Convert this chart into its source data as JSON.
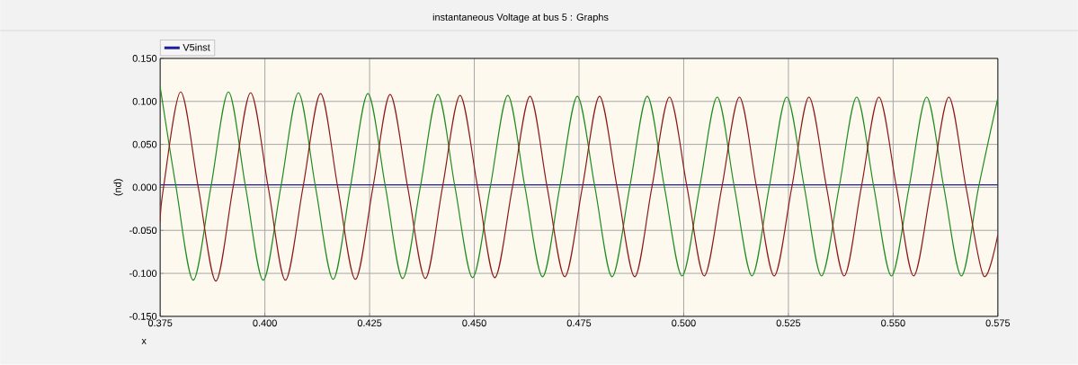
{
  "chart_data": {
    "type": "line",
    "title": "instantaneous Voltage at bus 5 : Graphs",
    "xlabel": "x",
    "ylabel": "(pu)",
    "xlim": [
      0.375,
      0.575
    ],
    "xticks": [
      {
        "value": 0.375,
        "label": "0.375"
      },
      {
        "value": 0.4,
        "label": "0.400"
      },
      {
        "value": 0.425,
        "label": "0.425"
      },
      {
        "value": 0.45,
        "label": "0.450"
      },
      {
        "value": 0.475,
        "label": "0.475"
      },
      {
        "value": 0.5,
        "label": "0.500"
      },
      {
        "value": 0.525,
        "label": "0.525"
      },
      {
        "value": 0.55,
        "label": "0.550"
      },
      {
        "value": 0.575,
        "label": "0.575"
      }
    ],
    "ylim": [
      -0.15,
      0.15
    ],
    "yticks": [
      {
        "value": -0.15,
        "label": "-0.150"
      },
      {
        "value": -0.1,
        "label": "-0.100"
      },
      {
        "value": -0.05,
        "label": "-0.050"
      },
      {
        "value": 0,
        "label": "0.000"
      },
      {
        "value": 0.05,
        "label": "0.050"
      },
      {
        "value": 0.1,
        "label": "0.100"
      },
      {
        "value": 0.15,
        "label": "0.150"
      }
    ],
    "grid": true,
    "legend": "top left",
    "series": [
      {
        "name": "V5inst",
        "color": "#1c1c9c",
        "x": [
          0.375,
          0.575
        ],
        "values": [
          0.003,
          0.003
        ]
      },
      {
        "color": "#1e8c1e",
        "x": [
          0.375,
          0.3788,
          0.3829,
          0.3871,
          0.3913,
          0.3954,
          0.3996,
          0.4038,
          0.408,
          0.4121,
          0.4163,
          0.4204,
          0.4246,
          0.4288,
          0.4329,
          0.4371,
          0.4413,
          0.4454,
          0.4496,
          0.4538,
          0.458,
          0.4621,
          0.4663,
          0.4704,
          0.4746,
          0.4788,
          0.4829,
          0.4871,
          0.4913,
          0.4954,
          0.4996,
          0.5038,
          0.508,
          0.5121,
          0.5163,
          0.5204,
          0.5246,
          0.5288,
          0.5329,
          0.5371,
          0.5413,
          0.5454,
          0.5496,
          0.5538,
          0.558,
          0.5621,
          0.5663,
          0.5704,
          0.575
        ],
        "values": [
          0.117,
          0,
          -0.108,
          0,
          0.111,
          0,
          -0.108,
          0,
          0.11,
          0,
          -0.107,
          0,
          0.109,
          0,
          -0.106,
          0,
          0.108,
          0,
          -0.105,
          0,
          0.107,
          0,
          -0.104,
          0,
          0.106,
          0,
          -0.104,
          0,
          0.106,
          0,
          -0.103,
          0,
          0.105,
          0,
          -0.103,
          0,
          0.105,
          0,
          -0.103,
          0,
          0.105,
          0,
          -0.103,
          0,
          0.105,
          0,
          -0.103,
          0,
          0.104
        ]
      },
      {
        "color": "#8c1a1a",
        "x": [
          0.375,
          0.3758,
          0.3799,
          0.3841,
          0.3883,
          0.3924,
          0.3966,
          0.4008,
          0.4049,
          0.4091,
          0.4133,
          0.4174,
          0.4216,
          0.4258,
          0.4299,
          0.4341,
          0.4383,
          0.4424,
          0.4466,
          0.4508,
          0.4549,
          0.4591,
          0.4633,
          0.4674,
          0.4716,
          0.4758,
          0.4799,
          0.4841,
          0.4883,
          0.4924,
          0.4966,
          0.5008,
          0.5049,
          0.5091,
          0.5133,
          0.5174,
          0.5216,
          0.5258,
          0.5299,
          0.5341,
          0.5383,
          0.5424,
          0.5466,
          0.5508,
          0.5549,
          0.5591,
          0.5633,
          0.5674,
          0.5716,
          0.575
        ],
        "values": [
          -0.04,
          0,
          0.111,
          0,
          -0.109,
          0,
          0.11,
          0,
          -0.108,
          0,
          0.109,
          0,
          -0.107,
          0,
          0.108,
          0,
          -0.106,
          0,
          0.107,
          0,
          -0.105,
          0,
          0.106,
          0,
          -0.104,
          0,
          0.106,
          0,
          -0.104,
          0,
          0.105,
          0,
          -0.103,
          0,
          0.105,
          0,
          -0.103,
          0,
          0.105,
          0,
          -0.103,
          0,
          0.105,
          0,
          -0.103,
          0,
          0.105,
          0,
          -0.103,
          -0.055
        ]
      }
    ]
  }
}
